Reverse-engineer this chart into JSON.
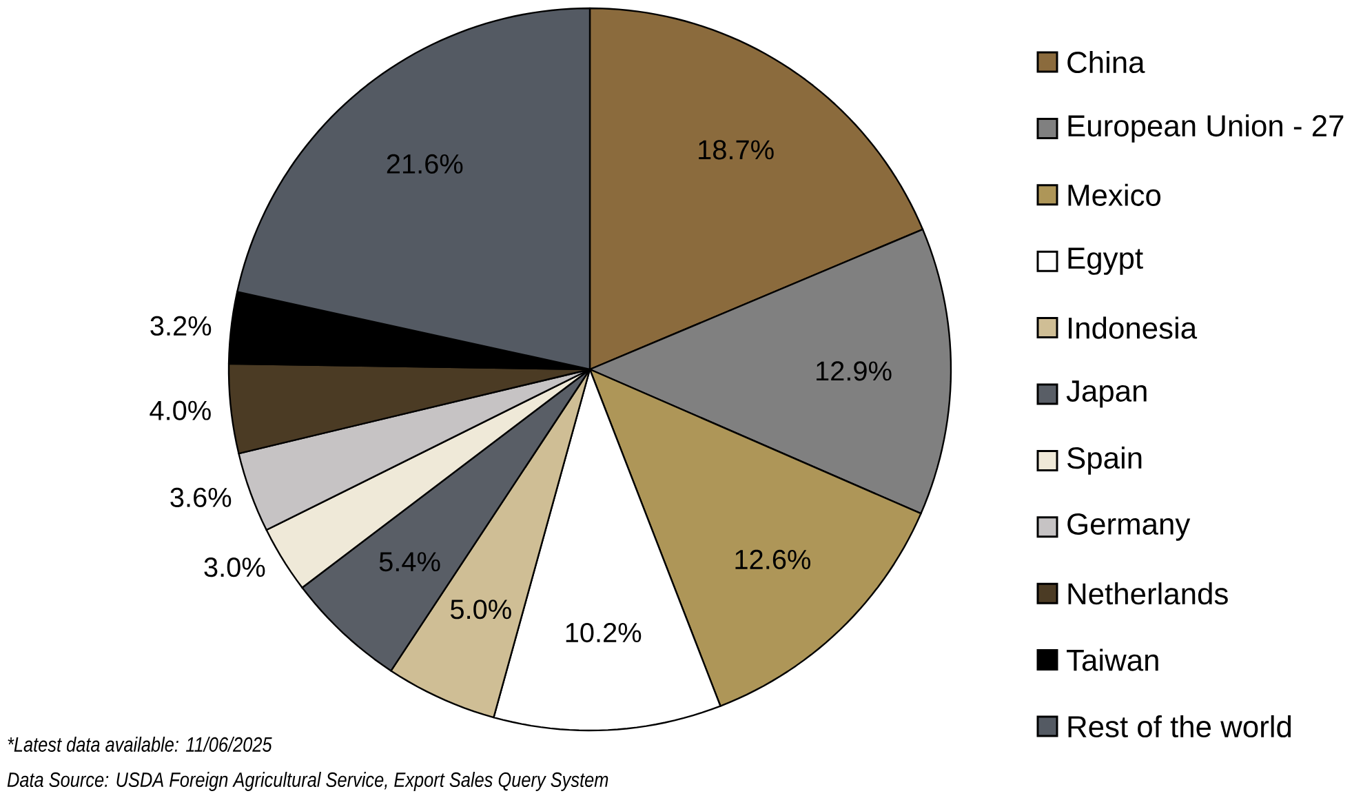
{
  "chart_data": {
    "type": "pie",
    "categories": [
      "China",
      "European Union - 27",
      "Mexico",
      "Egypt",
      "Indonesia",
      "Japan",
      "Spain",
      "Germany",
      "Netherlands",
      "Taiwan",
      "Rest of the world"
    ],
    "values": [
      18.7,
      12.9,
      12.6,
      10.2,
      5.0,
      5.4,
      3.0,
      3.6,
      4.0,
      3.2,
      21.6
    ],
    "colors": [
      "#8b6b3d",
      "#808080",
      "#ae9658",
      "#ffffff",
      "#cfbe95",
      "#595e66",
      "#efe9d8",
      "#c6c3c4",
      "#4b3b24",
      "#000000",
      "#545a63"
    ],
    "value_labels": [
      "18.7%",
      "12.9%",
      "12.6%",
      "10.2%",
      "5.0%",
      "5.4%",
      "3.0%",
      "3.6%",
      "4.0%",
      "3.2%",
      "21.6%"
    ],
    "legend": "right",
    "annotations": [
      "*Latest data available: 11/06/2025",
      "Data Source: USDA Foreign Agricultural Service, Export Sales Query System"
    ]
  }
}
